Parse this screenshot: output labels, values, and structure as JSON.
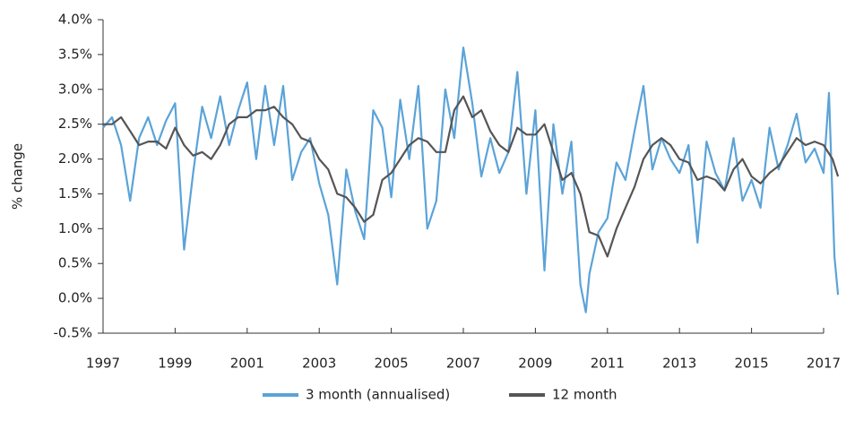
{
  "chart_data": {
    "type": "line",
    "y_label": "% change",
    "xlim": [
      1997,
      2017
    ],
    "xticks": [
      1997,
      1999,
      2001,
      2003,
      2005,
      2007,
      2009,
      2011,
      2013,
      2015,
      2017
    ],
    "ylim": [
      -0.5,
      4.0
    ],
    "yticks": [
      {
        "value": -0.5,
        "label": "-0.5%"
      },
      {
        "value": 0,
        "label": "0.0%"
      },
      {
        "value": 0.5,
        "label": "0.5%"
      },
      {
        "value": 1,
        "label": "1.0%"
      },
      {
        "value": 1.5,
        "label": "1.5%"
      },
      {
        "value": 2,
        "label": "2.0%"
      },
      {
        "value": 2.5,
        "label": "2.5%"
      },
      {
        "value": 3,
        "label": "3.0%"
      },
      {
        "value": 3.5,
        "label": "3.5%"
      },
      {
        "value": 4,
        "label": "4.0%"
      }
    ],
    "series": [
      {
        "name": "3 month (annualised)",
        "color": "#5ba3d8",
        "x": [
          1997.0,
          1997.25,
          1997.5,
          1997.75,
          1998.0,
          1998.25,
          1998.5,
          1998.75,
          1999.0,
          1999.25,
          1999.5,
          1999.75,
          2000.0,
          2000.25,
          2000.5,
          2000.75,
          2001.0,
          2001.25,
          2001.5,
          2001.75,
          2002.0,
          2002.25,
          2002.5,
          2002.75,
          2003.0,
          2003.25,
          2003.5,
          2003.75,
          2004.0,
          2004.25,
          2004.5,
          2004.75,
          2005.0,
          2005.25,
          2005.5,
          2005.75,
          2006.0,
          2006.25,
          2006.5,
          2006.75,
          2007.0,
          2007.25,
          2007.5,
          2007.75,
          2008.0,
          2008.25,
          2008.5,
          2008.75,
          2009.0,
          2009.25,
          2009.5,
          2009.75,
          2010.0,
          2010.25,
          2010.4,
          2010.5,
          2010.75,
          2011.0,
          2011.25,
          2011.5,
          2011.75,
          2012.0,
          2012.25,
          2012.5,
          2012.75,
          2013.0,
          2013.25,
          2013.5,
          2013.75,
          2014.0,
          2014.25,
          2014.5,
          2014.75,
          2015.0,
          2015.25,
          2015.5,
          2015.75,
          2016.0,
          2016.25,
          2016.5,
          2016.75,
          2017.0,
          2017.15,
          2017.3,
          2017.4
        ],
        "values": [
          2.45,
          2.6,
          2.2,
          1.4,
          2.3,
          2.6,
          2.2,
          2.55,
          2.8,
          0.7,
          1.8,
          2.75,
          2.3,
          2.9,
          2.2,
          2.7,
          3.1,
          2.0,
          3.05,
          2.2,
          3.05,
          1.7,
          2.1,
          2.3,
          1.65,
          1.2,
          0.2,
          1.85,
          1.25,
          0.85,
          2.7,
          2.45,
          1.45,
          2.85,
          2.0,
          3.05,
          1.0,
          1.4,
          3.0,
          2.3,
          3.6,
          2.8,
          1.75,
          2.3,
          1.8,
          2.1,
          3.25,
          1.5,
          2.7,
          0.4,
          2.5,
          1.5,
          2.25,
          0.2,
          -0.2,
          0.35,
          0.95,
          1.15,
          1.95,
          1.7,
          2.4,
          3.05,
          1.85,
          2.3,
          2.0,
          1.8,
          2.2,
          0.8,
          2.25,
          1.8,
          1.55,
          2.3,
          1.4,
          1.7,
          1.3,
          2.45,
          1.85,
          2.2,
          2.65,
          1.95,
          2.15,
          1.8,
          2.95,
          0.6,
          0.05
        ]
      },
      {
        "name": "12 month",
        "color": "#555555",
        "x": [
          1997.0,
          1997.25,
          1997.5,
          1997.75,
          1998.0,
          1998.25,
          1998.5,
          1998.75,
          1999.0,
          1999.25,
          1999.5,
          1999.75,
          2000.0,
          2000.25,
          2000.5,
          2000.75,
          2001.0,
          2001.25,
          2001.5,
          2001.75,
          2002.0,
          2002.25,
          2002.5,
          2002.75,
          2003.0,
          2003.25,
          2003.5,
          2003.75,
          2004.0,
          2004.25,
          2004.5,
          2004.75,
          2005.0,
          2005.25,
          2005.5,
          2005.75,
          2006.0,
          2006.25,
          2006.5,
          2006.75,
          2007.0,
          2007.25,
          2007.5,
          2007.75,
          2008.0,
          2008.25,
          2008.5,
          2008.75,
          2009.0,
          2009.25,
          2009.5,
          2009.75,
          2010.0,
          2010.25,
          2010.5,
          2010.75,
          2011.0,
          2011.25,
          2011.5,
          2011.75,
          2012.0,
          2012.25,
          2012.5,
          2012.75,
          2013.0,
          2013.25,
          2013.5,
          2013.75,
          2014.0,
          2014.25,
          2014.5,
          2014.75,
          2015.0,
          2015.25,
          2015.5,
          2015.75,
          2016.0,
          2016.25,
          2016.5,
          2016.75,
          2017.0,
          2017.25,
          2017.4
        ],
        "values": [
          2.5,
          2.5,
          2.6,
          2.4,
          2.2,
          2.25,
          2.25,
          2.15,
          2.45,
          2.2,
          2.05,
          2.1,
          2.0,
          2.2,
          2.5,
          2.6,
          2.6,
          2.7,
          2.7,
          2.75,
          2.6,
          2.5,
          2.3,
          2.25,
          2.0,
          1.85,
          1.5,
          1.45,
          1.3,
          1.1,
          1.2,
          1.7,
          1.8,
          2.0,
          2.2,
          2.3,
          2.25,
          2.1,
          2.1,
          2.7,
          2.9,
          2.6,
          2.7,
          2.4,
          2.2,
          2.1,
          2.45,
          2.35,
          2.35,
          2.5,
          2.1,
          1.7,
          1.8,
          1.5,
          0.95,
          0.9,
          0.6,
          1.0,
          1.3,
          1.6,
          2.0,
          2.2,
          2.3,
          2.2,
          2.0,
          1.95,
          1.7,
          1.75,
          1.7,
          1.55,
          1.85,
          2.0,
          1.75,
          1.65,
          1.8,
          1.9,
          2.1,
          2.3,
          2.2,
          2.25,
          2.2,
          2.0,
          1.75
        ]
      }
    ]
  }
}
